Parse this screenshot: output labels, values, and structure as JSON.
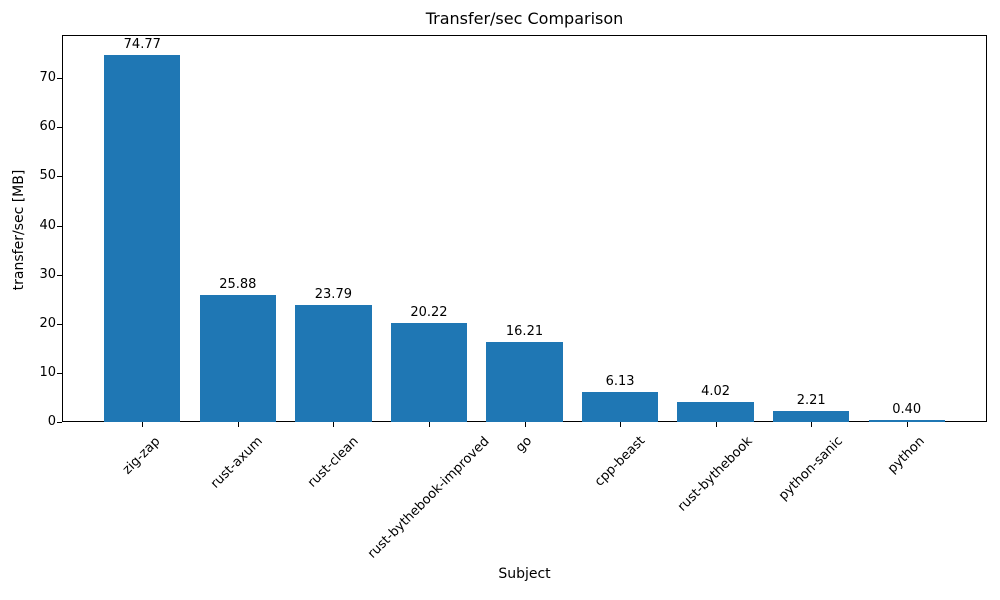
{
  "figure": {
    "background_color": "#ffffff"
  },
  "chart_data": {
    "type": "bar",
    "title": "Transfer/sec Comparison",
    "xlabel": "Subject",
    "ylabel": "transfer/sec [MB]",
    "categories": [
      "zig-zap",
      "rust-axum",
      "rust-clean",
      "rust-bythebook-improved",
      "go",
      "cpp-beast",
      "rust-bythebook",
      "python-sanic",
      "python"
    ],
    "values": [
      74.77,
      25.88,
      23.79,
      20.22,
      16.21,
      6.13,
      4.02,
      2.21,
      0.4
    ],
    "bar_value_labels": [
      "74.77",
      "25.88",
      "23.79",
      "20.22",
      "16.21",
      "6.13",
      "4.02",
      "2.21",
      "0.40"
    ],
    "bar_color": "#1f77b4",
    "axis_color": "#000000",
    "text_color": "#000000",
    "ylim": [
      0,
      78.8
    ],
    "yticks": [
      0,
      10,
      20,
      30,
      40,
      50,
      60,
      70
    ],
    "x_tick_rotation_deg": 45,
    "grid": false,
    "legend": null
  }
}
